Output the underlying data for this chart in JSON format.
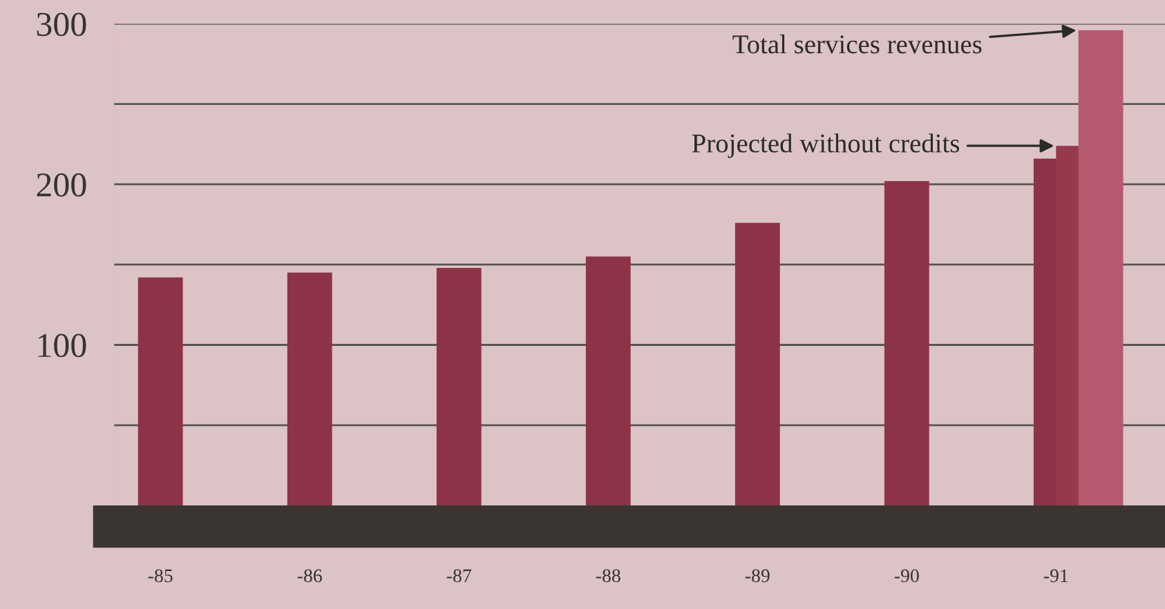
{
  "chart_data": {
    "type": "bar",
    "categories": [
      "-85",
      "-86",
      "-87",
      "-88",
      "-89",
      "-90",
      "-91"
    ],
    "series": [
      {
        "color": "#8c3347",
        "values": [
          142,
          145,
          148,
          155,
          176,
          202,
          216
        ]
      },
      {
        "name": "Projected without credits",
        "color": "#96394d",
        "values": [
          null,
          null,
          null,
          null,
          null,
          null,
          224
        ]
      },
      {
        "name": "Total services revenues",
        "color": "#b65a70",
        "values": [
          null,
          null,
          null,
          null,
          null,
          null,
          296
        ]
      }
    ],
    "ylim": [
      0,
      300
    ],
    "yticks": [
      {
        "value": 50,
        "label": null
      },
      100,
      {
        "value": 150,
        "label": null
      },
      200,
      {
        "value": 250,
        "label": null
      },
      300
    ],
    "grid": "y"
  }
}
